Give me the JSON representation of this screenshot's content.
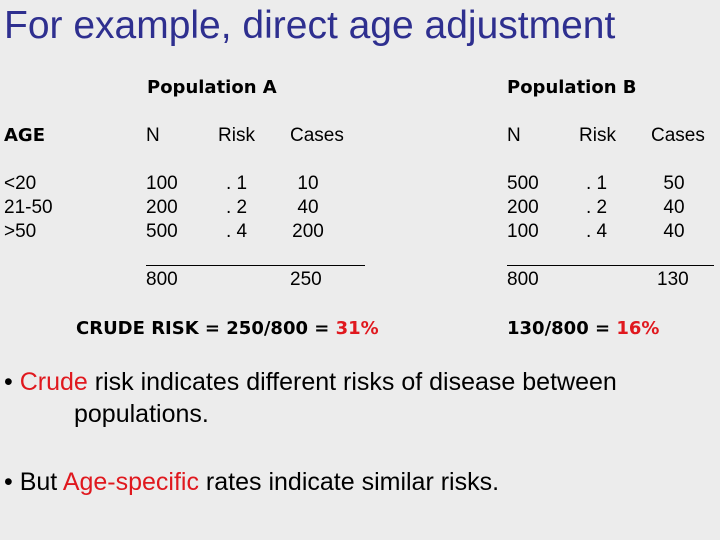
{
  "title": "For example, direct age adjustment",
  "pop_a_label": "Population A",
  "pop_b_label": "Population B",
  "columns": {
    "age": "AGE",
    "a_n": "N",
    "a_risk": "Risk",
    "a_cases": "Cases",
    "b_n": "N",
    "b_risk": "Risk",
    "b_cases": "Cases"
  },
  "rows": [
    {
      "age": "<20",
      "a_n": "100",
      "a_risk": ". 1",
      "a_cases": "10",
      "b_n": "500",
      "b_risk": ". 1",
      "b_cases": "50"
    },
    {
      "age": "21-50",
      "a_n": "200",
      "a_risk": ". 2",
      "a_cases": "40",
      "b_n": "200",
      "b_risk": ". 2",
      "b_cases": "40"
    },
    {
      "age": ">50",
      "a_n": "500",
      "a_risk": ". 4",
      "a_cases": "200",
      "b_n": "100",
      "b_risk": ". 4",
      "b_cases": "40"
    }
  ],
  "totals": {
    "a_n": "800",
    "a_cases": "250",
    "b_n": "800",
    "b_cases": "130"
  },
  "crude_a": {
    "prefix": "CRUDE RISK = 250/800 = ",
    "value": "31%"
  },
  "crude_b": {
    "prefix": "130/800 = ",
    "value": "16%"
  },
  "bullet1": {
    "mark": "•",
    "highlight": "Crude",
    "rest_line1": " risk indicates different risks of disease between",
    "line2": "populations."
  },
  "bullet2": {
    "mark": "•",
    "lead": "But ",
    "highlight": "Age-specific",
    "rest": " rates indicate similar risks."
  }
}
